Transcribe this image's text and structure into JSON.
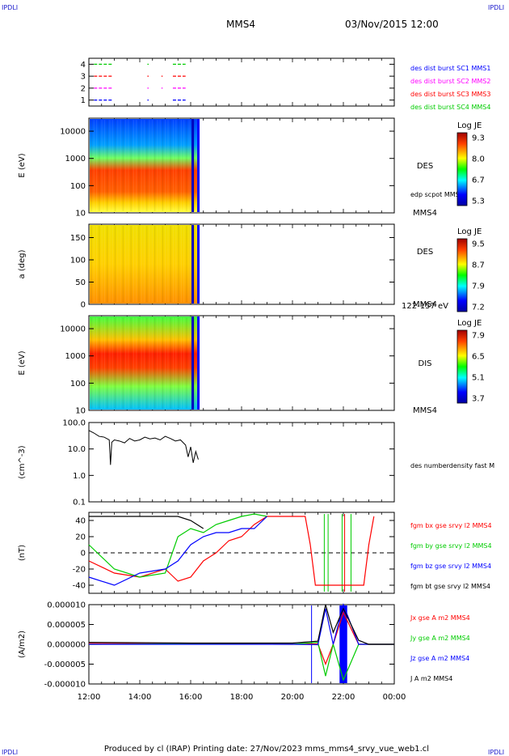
{
  "header": {
    "corner_labels": [
      "IPDLI",
      "IPDLI",
      "IPDLI",
      "IPDLI"
    ],
    "spacecraft": "MMS4",
    "datetime": "03/Nov/2015 12:00"
  },
  "footer": {
    "text": "Produced by cl (IRAP)   Printing date: 27/Nov/2023   mms_mms4_srvy_vue_web1.cl"
  },
  "time_axis": {
    "ticks": [
      "12:00",
      "14:00",
      "16:00",
      "18:00",
      "20:00",
      "22:00",
      "00:00"
    ],
    "range_hours": [
      12,
      24
    ]
  },
  "colors": {
    "blue": "#0000ff",
    "magenta": "#ff00ff",
    "red": "#ff0000",
    "green": "#00cc00",
    "black": "#000000"
  },
  "chart_data": [
    {
      "type": "line",
      "panel": "burst-availability",
      "ylabel": "",
      "yticks": [
        "4",
        "3",
        "2",
        "1"
      ],
      "ylim": [
        0.5,
        4.5
      ],
      "series": [
        {
          "name": "des dist burst SC1 MMS1",
          "level": 1,
          "color": "#0000ff",
          "intervals_hours": [
            [
              12.2,
              12.9
            ],
            [
              14.3,
              14.35
            ],
            [
              15.3,
              15.8
            ]
          ]
        },
        {
          "name": "des dist burst SC2 MMS2",
          "level": 2,
          "color": "#ff00ff",
          "intervals_hours": [
            [
              12.2,
              12.9
            ],
            [
              14.3,
              14.35
            ],
            [
              14.85,
              14.9
            ],
            [
              15.3,
              15.8
            ]
          ]
        },
        {
          "name": "des dist burst SC3 MMS3",
          "level": 3,
          "color": "#ff0000",
          "intervals_hours": [
            [
              12.2,
              12.9
            ],
            [
              14.3,
              14.35
            ],
            [
              14.85,
              14.9
            ],
            [
              15.3,
              15.8
            ]
          ]
        },
        {
          "name": "des dist burst SC4 MMS4",
          "level": 4,
          "color": "#00cc00",
          "intervals_hours": [
            [
              12.2,
              12.9
            ],
            [
              14.3,
              14.35
            ],
            [
              15.3,
              15.8
            ]
          ]
        }
      ]
    },
    {
      "type": "heatmap",
      "panel": "des-energy",
      "ylabel": "E (eV)",
      "yscale": "log",
      "ylim": [
        10,
        30000
      ],
      "yticks": [
        "10000",
        "1000",
        "100",
        "10"
      ],
      "data_end_hour": 16.35,
      "label": "DES",
      "sub_label": "edp scpot MMS4",
      "sc_label": "MMS4",
      "colorbar": {
        "title": "Log JE",
        "ticks": [
          "9.3",
          "8.0",
          "6.7",
          "5.3"
        ]
      }
    },
    {
      "type": "heatmap",
      "panel": "des-pitch-angle",
      "ylabel": "a (deg)",
      "ylim": [
        0,
        180
      ],
      "yticks": [
        "150",
        "100",
        "50",
        "0"
      ],
      "data_end_hour": 16.35,
      "label": "DES",
      "sc_label": "MMS4",
      "energy_band": "122-157 eV",
      "colorbar": {
        "title": "Log JE",
        "ticks": [
          "9.5",
          "8.7",
          "7.9",
          "7.2"
        ]
      }
    },
    {
      "type": "heatmap",
      "panel": "dis-energy",
      "ylabel": "E (eV)",
      "yscale": "log",
      "ylim": [
        10,
        30000
      ],
      "yticks": [
        "10000",
        "1000",
        "100",
        "10"
      ],
      "data_end_hour": 16.35,
      "label": "DIS",
      "sc_label": "MMS4",
      "colorbar": {
        "title": "Log JE",
        "ticks": [
          "7.9",
          "6.5",
          "5.1",
          "3.7"
        ]
      }
    },
    {
      "type": "line",
      "panel": "density",
      "ylabel": "(cm^-3)",
      "yscale": "log",
      "ylim": [
        0.1,
        100
      ],
      "yticks": [
        "100.0",
        "10.0",
        "1.0",
        "0.1"
      ],
      "series": [
        {
          "name": "des numberdensity fast M",
          "color": "#000000",
          "x": [
            12.0,
            12.2,
            12.4,
            12.6,
            12.8,
            12.85,
            12.9,
            13.0,
            13.2,
            13.4,
            13.6,
            13.8,
            14.0,
            14.2,
            14.4,
            14.6,
            14.8,
            15.0,
            15.2,
            15.4,
            15.6,
            15.8,
            15.9,
            16.0,
            16.1,
            16.2,
            16.3
          ],
          "y": [
            50,
            40,
            30,
            28,
            22,
            2.5,
            18,
            22,
            20,
            17,
            25,
            20,
            22,
            28,
            24,
            26,
            22,
            30,
            25,
            20,
            22,
            14,
            5,
            12,
            3,
            8,
            4
          ]
        }
      ]
    },
    {
      "type": "line",
      "panel": "magnetic-field",
      "ylabel": "(nT)",
      "ylim": [
        -50,
        50
      ],
      "yticks": [
        "40",
        "20",
        "0",
        "-20",
        "-40"
      ],
      "series": [
        {
          "name": "fgm bx gse srvy l2 MMS4",
          "color": "#ff0000",
          "x": [
            12.0,
            13.0,
            14.0,
            15.0,
            15.5,
            16.0,
            16.5,
            17.0,
            17.5,
            18.0,
            18.5,
            19.0,
            20.5,
            20.7,
            20.9,
            22.8,
            23.0,
            23.2
          ],
          "y": [
            -10,
            -25,
            -30,
            -20,
            -35,
            -30,
            -10,
            0,
            15,
            20,
            35,
            45,
            45,
            10,
            -40,
            -40,
            10,
            45
          ]
        },
        {
          "name": "fgm by gse srvy l2 MMS4",
          "color": "#00cc00",
          "x": [
            12.0,
            13.0,
            14.0,
            15.0,
            15.5,
            16.0,
            16.5,
            17.0,
            17.5,
            18.0,
            18.5,
            19.0
          ],
          "y": [
            10,
            -20,
            -30,
            -25,
            20,
            30,
            25,
            35,
            40,
            45,
            48,
            45
          ]
        },
        {
          "name": "fgm bz gse srvy l2 MMS4",
          "color": "#0000ff",
          "x": [
            12.0,
            13.0,
            14.0,
            15.0,
            15.5,
            16.0,
            16.5,
            17.0,
            17.5,
            18.0,
            18.5,
            19.0
          ],
          "y": [
            -30,
            -40,
            -25,
            -20,
            -10,
            10,
            20,
            25,
            25,
            30,
            30,
            45
          ]
        },
        {
          "name": "fgm bt gse srvy l2 MMS4",
          "color": "#000000",
          "x": [
            12.0,
            13.0,
            14.0,
            15.0,
            15.5,
            16.0,
            16.5
          ],
          "y": [
            45,
            45,
            45,
            45,
            45,
            40,
            30
          ]
        }
      ]
    },
    {
      "type": "line",
      "panel": "current-density",
      "ylabel": "(A/m2)",
      "ylim": [
        -0.0001,
        0.0001
      ],
      "yticks": [
        "0.000010",
        "0.000005",
        "0.000000",
        "-0.000005",
        "-0.000010"
      ],
      "series": [
        {
          "name": "Jx gse A m2 MMS4",
          "color": "#ff0000",
          "x": [
            12.0,
            16.0,
            20.0,
            21.0,
            21.3,
            21.6,
            22.0,
            22.6,
            23.0,
            24.0
          ],
          "y": [
            2e-07,
            1e-07,
            0,
            1e-07,
            -5e-06,
            0,
            8e-06,
            0,
            0,
            0
          ]
        },
        {
          "name": "Jy gse A m2 MMS4",
          "color": "#00cc00",
          "x": [
            12.0,
            16.0,
            20.0,
            21.0,
            21.3,
            21.6,
            22.0,
            22.6,
            23.0,
            24.0
          ],
          "y": [
            0,
            1e-07,
            0,
            5e-07,
            -8e-06,
            0,
            -9e-06,
            0,
            0,
            0
          ]
        },
        {
          "name": "Jz gse A m2 MMS4",
          "color": "#0000ff",
          "x": [
            12.0,
            16.0,
            20.0,
            21.0,
            21.3,
            21.6,
            22.0,
            22.6,
            23.0,
            24.0
          ],
          "y": [
            0,
            0,
            0,
            -1e-07,
            9e-06,
            0,
            1e-05,
            0,
            0,
            0
          ]
        },
        {
          "name": "J A m2 MMS4",
          "color": "#000000",
          "x": [
            12.0,
            16.0,
            20.0,
            21.0,
            21.3,
            21.6,
            22.0,
            22.6,
            23.0,
            24.0
          ],
          "y": [
            5e-07,
            3e-07,
            3e-07,
            8e-07,
            1e-05,
            3e-06,
            9e-06,
            1e-06,
            0,
            0
          ]
        }
      ]
    }
  ]
}
